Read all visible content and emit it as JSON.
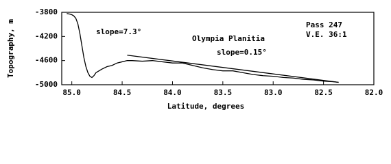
{
  "chart_data": {
    "type": "line",
    "ylabel": "Topography, m",
    "xlabel": "Latitude, degrees",
    "annotations": [
      "slope=7.3°",
      "Olympia Planitia",
      "slope=0.15°",
      "Pass 247",
      "V.E. 36:1"
    ],
    "xlim": [
      85.1,
      82.0
    ],
    "ylim": [
      -5000,
      -3800
    ],
    "xticks": [
      {
        "value": 85.0,
        "label": "85.0"
      },
      {
        "value": 84.5,
        "label": "84.5"
      },
      {
        "value": 84.0,
        "label": "84.0"
      },
      {
        "value": 83.5,
        "label": "83.5"
      },
      {
        "value": 83.0,
        "label": "83.0"
      },
      {
        "value": 82.5,
        "label": "82.5"
      },
      {
        "value": 82.0,
        "label": "82.0"
      }
    ],
    "yticks": [
      -3800,
      -4200,
      -4600,
      -5000
    ],
    "series": [
      {
        "color": "#000000",
        "x": [
          85.05,
          85.02,
          85.0,
          84.98,
          84.96,
          84.94,
          84.92,
          84.9,
          84.88,
          84.86,
          84.84,
          84.82,
          84.8,
          84.78,
          84.76,
          84.74,
          84.72,
          84.7,
          84.65,
          84.6,
          84.55,
          84.5,
          84.45,
          84.4,
          84.3,
          84.2,
          84.1,
          84.0,
          83.9,
          83.8,
          83.7,
          83.6,
          83.5,
          83.4,
          83.3,
          83.2,
          83.1,
          83.0,
          82.9,
          82.8,
          82.7,
          82.6,
          82.5,
          82.4,
          82.35
        ],
        "values": [
          -3820,
          -3830,
          -3840,
          -3860,
          -3900,
          -3990,
          -4150,
          -4350,
          -4550,
          -4700,
          -4800,
          -4860,
          -4880,
          -4850,
          -4800,
          -4780,
          -4760,
          -4740,
          -4700,
          -4680,
          -4640,
          -4620,
          -4600,
          -4600,
          -4610,
          -4600,
          -4620,
          -4640,
          -4640,
          -4680,
          -4720,
          -4750,
          -4770,
          -4770,
          -4800,
          -4830,
          -4850,
          -4860,
          -4880,
          -4890,
          -4910,
          -4920,
          -4940,
          -4950,
          -4960
        ]
      },
      {
        "color": "#000000",
        "x": [
          84.45,
          82.35
        ],
        "values": [
          -4510,
          -4960
        ]
      }
    ]
  }
}
